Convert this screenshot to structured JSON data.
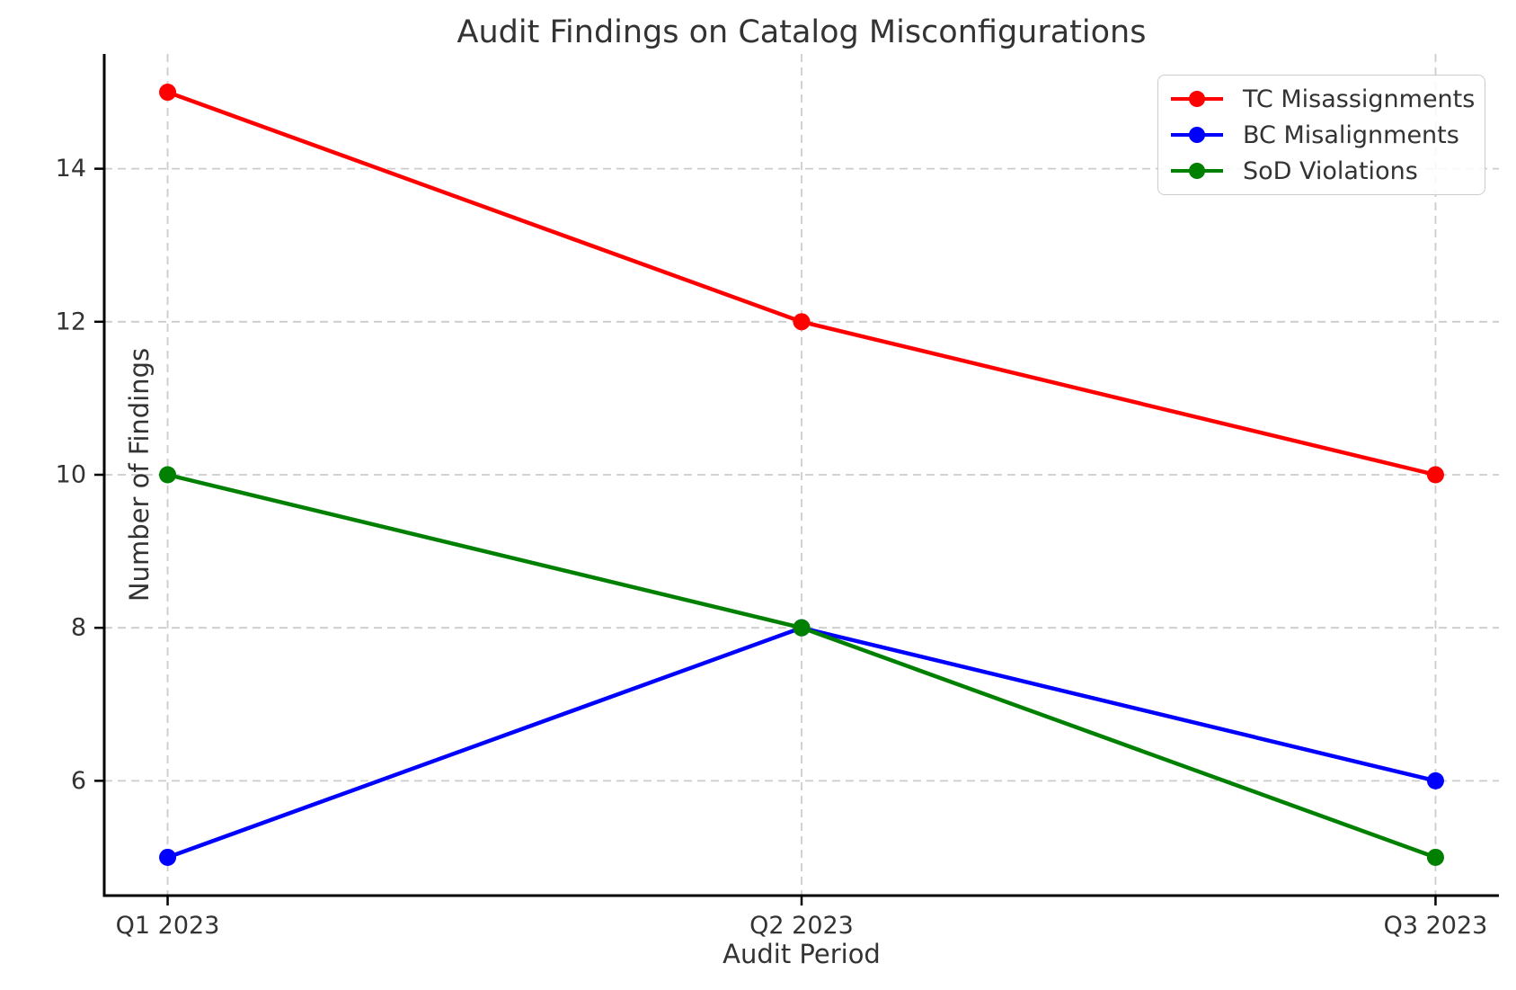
{
  "chart_data": {
    "type": "line",
    "title": "Audit Findings on Catalog Misconfigurations",
    "xlabel": "Audit Period",
    "ylabel": "Number of Findings",
    "categories": [
      "Q1 2023",
      "Q2 2023",
      "Q3 2023"
    ],
    "series": [
      {
        "name": "TC Misassignments",
        "color": "#ff0000",
        "values": [
          15,
          12,
          10
        ]
      },
      {
        "name": "BC Misalignments",
        "color": "#0000ff",
        "values": [
          5,
          8,
          6
        ]
      },
      {
        "name": "SoD Violations",
        "color": "#008000",
        "values": [
          10,
          8,
          5
        ]
      }
    ],
    "yticks": [
      6,
      8,
      10,
      12,
      14
    ],
    "ylim": [
      4.5,
      15.5
    ],
    "grid": true,
    "grid_style": "dashed",
    "legend_position": "upper right",
    "colors": {
      "grid": "#cccccc",
      "spine": "#000000",
      "text": "#333333",
      "background": "#ffffff"
    }
  }
}
